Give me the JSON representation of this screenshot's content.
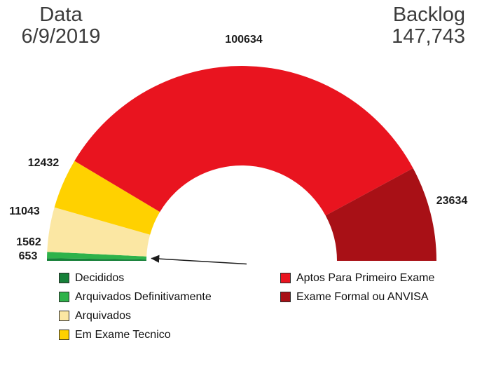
{
  "header": {
    "date_label": "Data",
    "date_value": "6/9/2019",
    "backlog_label": "Backlog",
    "backlog_value": "147,743"
  },
  "chart_data": {
    "type": "pie",
    "variant": "half-donut-gauge",
    "title": "",
    "start_angle_deg": 180,
    "end_angle_deg": 0,
    "legend_position": "bottom",
    "segments": [
      {
        "label": "Decididos",
        "value": 653,
        "color": "#168039"
      },
      {
        "label": "Arquivados Definitivamente",
        "value": 1562,
        "color": "#2eb24a"
      },
      {
        "label": "Arquivados",
        "value": 11043,
        "color": "#fbe7a3"
      },
      {
        "label": "Em Exame Tecnico",
        "value": 12432,
        "color": "#ffd100"
      },
      {
        "label": "Aptos Para Primeiro Exame",
        "value": 100634,
        "color": "#e9141f"
      },
      {
        "label": "Exame Formal ou ANVISA",
        "value": 23634,
        "color": "#a81016"
      }
    ],
    "annotations": [
      {
        "type": "arrow",
        "target": "smallest segments (Decididos / Arquivados Definitivamente)"
      }
    ]
  }
}
